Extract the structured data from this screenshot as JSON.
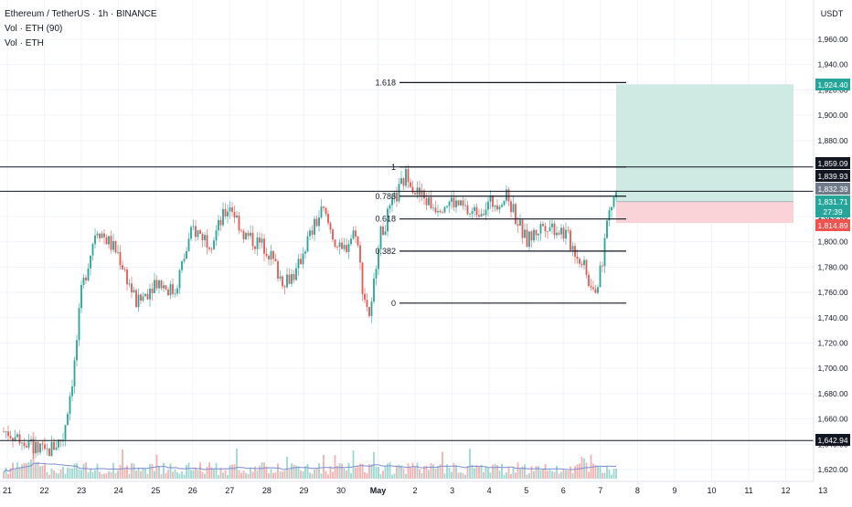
{
  "legend": {
    "title": "Ethereum / TetherUS · 1h · BINANCE",
    "vol_line_1": "Vol · ETH (90)",
    "vol_line_2": "Vol · ETH"
  },
  "price_axis": {
    "currency": "USDT",
    "ticks": [
      "1,960.00",
      "1,940.00",
      "1,920.00",
      "1,900.00",
      "1,880.00",
      "1,860.00",
      "1,840.00",
      "1,820.00",
      "1,800.00",
      "1,780.00",
      "1,760.00",
      "1,740.00",
      "1,720.00",
      "1,700.00",
      "1,680.00",
      "1,660.00",
      "1,640.00",
      "1,620.00"
    ]
  },
  "time_axis": {
    "labels": [
      "21",
      "22",
      "23",
      "24",
      "25",
      "26",
      "27",
      "28",
      "29",
      "30",
      "May",
      "2",
      "3",
      "4",
      "5",
      "6",
      "7",
      "8",
      "9",
      "10",
      "11",
      "12",
      "13"
    ]
  },
  "price_labels": {
    "target": "1,924.40",
    "level_1859": "1,859.09",
    "level_1839": "1,839.93",
    "level_1832": "1,832.39",
    "current": "1,831.71",
    "countdown": "27:39",
    "stop": "1,814.89",
    "level_1642": "1,642.94"
  },
  "colors": {
    "up": "#26a69a",
    "down": "#ef5350",
    "profit_zone": "#cfeae3",
    "loss_zone": "#f9d3d8",
    "target_badge": "#26a69a",
    "stop_badge": "#ef5350",
    "current_badge": "#6f7b8b",
    "level_badge": "#131722",
    "volume_ma": "#7b8fd1"
  },
  "chart_data": {
    "type": "candlestick",
    "symbol": "ETHUSDT",
    "interval": "1h",
    "exchange": "BINANCE",
    "y_range": [
      1612,
      1972
    ],
    "horizontal_levels": [
      1859.09,
      1839.93,
      1642.94
    ],
    "fibonacci": {
      "levels": [
        {
          "label": "1.618",
          "price": 1925.8
        },
        {
          "label": "1",
          "price": 1859.09
        },
        {
          "label": "0.786",
          "price": 1836.0
        },
        {
          "label": "0.618",
          "price": 1818.0
        },
        {
          "label": "0.382",
          "price": 1792.6
        },
        {
          "label": "0",
          "price": 1751.5
        }
      ]
    },
    "long_position": {
      "target": 1924.4,
      "entry": 1831.71,
      "stop": 1814.89
    },
    "price_path": [
      {
        "day": "21",
        "price": 1650
      },
      {
        "day": "21.6",
        "price": 1640
      },
      {
        "day": "22",
        "price": 1632
      },
      {
        "day": "22.5",
        "price": 1645
      },
      {
        "day": "22.8",
        "price": 1700
      },
      {
        "day": "23",
        "price": 1760
      },
      {
        "day": "23.4",
        "price": 1812
      },
      {
        "day": "24",
        "price": 1790
      },
      {
        "day": "24.5",
        "price": 1750
      },
      {
        "day": "25",
        "price": 1770
      },
      {
        "day": "25.5",
        "price": 1760
      },
      {
        "day": "26",
        "price": 1810
      },
      {
        "day": "26.5",
        "price": 1800
      },
      {
        "day": "27",
        "price": 1830
      },
      {
        "day": "27.4",
        "price": 1805
      },
      {
        "day": "28",
        "price": 1795
      },
      {
        "day": "28.4",
        "price": 1770
      },
      {
        "day": "28.8",
        "price": 1775
      },
      {
        "day": "29",
        "price": 1795
      },
      {
        "day": "29.5",
        "price": 1825
      },
      {
        "day": "30",
        "price": 1790
      },
      {
        "day": "30.4",
        "price": 1810
      },
      {
        "day": "30.6",
        "price": 1760
      },
      {
        "day": "30.8",
        "price": 1740
      },
      {
        "day": "May",
        "price": 1800
      },
      {
        "day": "1.4",
        "price": 1830
      },
      {
        "day": "1.8",
        "price": 1855
      },
      {
        "day": "2",
        "price": 1840
      },
      {
        "day": "2.5",
        "price": 1828
      },
      {
        "day": "3",
        "price": 1832
      },
      {
        "day": "3.5",
        "price": 1822
      },
      {
        "day": "4",
        "price": 1830
      },
      {
        "day": "4.5",
        "price": 1835
      },
      {
        "day": "5",
        "price": 1800
      },
      {
        "day": "5.5",
        "price": 1815
      },
      {
        "day": "6",
        "price": 1808
      },
      {
        "day": "6.5",
        "price": 1785
      },
      {
        "day": "6.8",
        "price": 1758
      },
      {
        "day": "7",
        "price": 1775
      },
      {
        "day": "7.2",
        "price": 1820
      },
      {
        "day": "7.4",
        "price": 1838
      },
      {
        "day": "7.6",
        "price": 1832
      }
    ],
    "volume_ma_visible": true
  }
}
